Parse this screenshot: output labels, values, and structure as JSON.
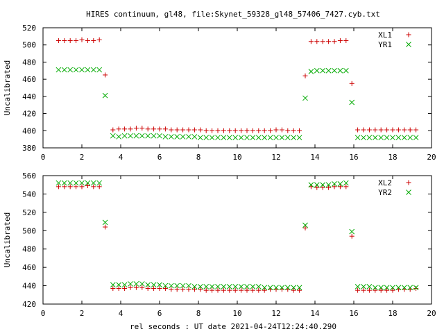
{
  "figure_title": "HIRES continuum, gl48, file:Skynet_59328_gl48_57406_7427.cyb.txt",
  "shared_xlabel": "rel seconds : UT date 2021-04-24T12:24:40.290",
  "colors": {
    "plus_series": "#cc0000",
    "cross_series": "#00aa00",
    "axes": "#000000"
  },
  "chart_data": [
    {
      "type": "scatter",
      "title": "",
      "xlabel": "",
      "ylabel": "Uncalibrated",
      "xlim": [
        0,
        20
      ],
      "ylim": [
        380,
        520
      ],
      "xticks": [
        0,
        2,
        4,
        6,
        8,
        10,
        12,
        14,
        16,
        18,
        20
      ],
      "yticks": [
        380,
        400,
        420,
        440,
        460,
        480,
        500,
        520
      ],
      "grid": false,
      "legend_position": "top-right",
      "series": [
        {
          "name": "XL1",
          "marker": "plus",
          "color": "#cc0000",
          "x": [
            0.8,
            1.1,
            1.4,
            1.7,
            2.0,
            2.3,
            2.6,
            2.9,
            3.2,
            3.6,
            3.9,
            4.2,
            4.5,
            4.8,
            5.1,
            5.4,
            5.7,
            6.0,
            6.3,
            6.6,
            6.9,
            7.2,
            7.5,
            7.8,
            8.1,
            8.4,
            8.7,
            9.0,
            9.3,
            9.6,
            9.9,
            10.2,
            10.5,
            10.8,
            11.1,
            11.4,
            11.7,
            12.0,
            12.3,
            12.6,
            12.9,
            13.2,
            13.5,
            13.8,
            14.1,
            14.4,
            14.7,
            15.0,
            15.3,
            15.6,
            15.9,
            16.2,
            16.5,
            16.8,
            17.1,
            17.4,
            17.7,
            18.0,
            18.3,
            18.6,
            18.9,
            19.2
          ],
          "y": [
            505,
            505,
            505,
            505,
            506,
            505,
            505,
            506,
            465,
            401,
            402,
            402,
            402,
            403,
            403,
            402,
            402,
            402,
            402,
            401,
            401,
            401,
            401,
            401,
            401,
            400,
            400,
            400,
            400,
            400,
            400,
            400,
            400,
            400,
            400,
            400,
            400,
            401,
            401,
            400,
            400,
            400,
            464,
            504,
            504,
            504,
            504,
            504,
            505,
            505,
            455,
            401,
            401,
            401,
            401,
            401,
            401,
            401,
            401,
            401,
            401,
            401
          ]
        },
        {
          "name": "YR1",
          "marker": "cross",
          "color": "#00aa00",
          "x": [
            0.8,
            1.1,
            1.4,
            1.7,
            2.0,
            2.3,
            2.6,
            2.9,
            3.2,
            3.6,
            3.9,
            4.2,
            4.5,
            4.8,
            5.1,
            5.4,
            5.7,
            6.0,
            6.3,
            6.6,
            6.9,
            7.2,
            7.5,
            7.8,
            8.1,
            8.4,
            8.7,
            9.0,
            9.3,
            9.6,
            9.9,
            10.2,
            10.5,
            10.8,
            11.1,
            11.4,
            11.7,
            12.0,
            12.3,
            12.6,
            12.9,
            13.2,
            13.5,
            13.8,
            14.1,
            14.4,
            14.7,
            15.0,
            15.3,
            15.6,
            15.9,
            16.2,
            16.5,
            16.8,
            17.1,
            17.4,
            17.7,
            18.0,
            18.3,
            18.6,
            18.9,
            19.2
          ],
          "y": [
            471,
            471,
            471,
            471,
            471,
            471,
            471,
            471,
            441,
            394,
            393,
            394,
            394,
            394,
            394,
            394,
            394,
            394,
            393,
            393,
            393,
            393,
            393,
            393,
            392,
            392,
            392,
            392,
            392,
            392,
            392,
            392,
            392,
            392,
            392,
            392,
            392,
            392,
            392,
            392,
            392,
            392,
            438,
            469,
            470,
            470,
            470,
            470,
            470,
            470,
            433,
            392,
            392,
            392,
            392,
            392,
            392,
            392,
            392,
            392,
            392,
            392
          ]
        }
      ]
    },
    {
      "type": "scatter",
      "title": "",
      "xlabel": "rel seconds : UT date 2021-04-24T12:24:40.290",
      "ylabel": "Uncalibrated",
      "xlim": [
        0,
        20
      ],
      "ylim": [
        420,
        560
      ],
      "xticks": [
        0,
        2,
        4,
        6,
        8,
        10,
        12,
        14,
        16,
        18,
        20
      ],
      "yticks": [
        420,
        440,
        460,
        480,
        500,
        520,
        540,
        560
      ],
      "grid": false,
      "legend_position": "top-right",
      "series": [
        {
          "name": "XL2",
          "marker": "plus",
          "color": "#cc0000",
          "x": [
            0.8,
            1.1,
            1.4,
            1.7,
            2.0,
            2.3,
            2.6,
            2.9,
            3.2,
            3.6,
            3.9,
            4.2,
            4.5,
            4.8,
            5.1,
            5.4,
            5.7,
            6.0,
            6.3,
            6.6,
            6.9,
            7.2,
            7.5,
            7.8,
            8.1,
            8.4,
            8.7,
            9.0,
            9.3,
            9.6,
            9.9,
            10.2,
            10.5,
            10.8,
            11.1,
            11.4,
            11.7,
            12.0,
            12.3,
            12.6,
            12.9,
            13.2,
            13.5,
            13.8,
            14.1,
            14.4,
            14.7,
            15.0,
            15.3,
            15.6,
            15.9,
            16.2,
            16.5,
            16.8,
            17.1,
            17.4,
            17.7,
            18.0,
            18.3,
            18.6,
            18.9,
            19.2
          ],
          "y": [
            548,
            548,
            548,
            548,
            548,
            549,
            548,
            548,
            504,
            437,
            437,
            437,
            438,
            438,
            438,
            437,
            437,
            437,
            437,
            436,
            436,
            436,
            436,
            436,
            436,
            435,
            435,
            435,
            435,
            435,
            435,
            435,
            435,
            435,
            435,
            435,
            436,
            436,
            436,
            436,
            435,
            435,
            503,
            548,
            547,
            547,
            547,
            548,
            548,
            548,
            494,
            435,
            435,
            435,
            435,
            435,
            435,
            435,
            436,
            436,
            436,
            437
          ]
        },
        {
          "name": "YR2",
          "marker": "cross",
          "color": "#00aa00",
          "x": [
            0.8,
            1.1,
            1.4,
            1.7,
            2.0,
            2.3,
            2.6,
            2.9,
            3.2,
            3.6,
            3.9,
            4.2,
            4.5,
            4.8,
            5.1,
            5.4,
            5.7,
            6.0,
            6.3,
            6.6,
            6.9,
            7.2,
            7.5,
            7.8,
            8.1,
            8.4,
            8.7,
            9.0,
            9.3,
            9.6,
            9.9,
            10.2,
            10.5,
            10.8,
            11.1,
            11.4,
            11.7,
            12.0,
            12.3,
            12.6,
            12.9,
            13.2,
            13.5,
            13.8,
            14.1,
            14.4,
            14.7,
            15.0,
            15.3,
            15.6,
            15.9,
            16.2,
            16.5,
            16.8,
            17.1,
            17.4,
            17.7,
            18.0,
            18.3,
            18.6,
            18.9,
            19.2
          ],
          "y": [
            552,
            552,
            552,
            552,
            552,
            552,
            552,
            552,
            509,
            441,
            441,
            441,
            442,
            442,
            442,
            441,
            441,
            441,
            440,
            440,
            440,
            440,
            440,
            439,
            439,
            439,
            439,
            439,
            439,
            439,
            439,
            439,
            439,
            439,
            439,
            438,
            438,
            438,
            438,
            438,
            438,
            438,
            506,
            550,
            550,
            550,
            550,
            551,
            551,
            552,
            499,
            439,
            439,
            439,
            438,
            438,
            438,
            438,
            438,
            438,
            438,
            438
          ]
        }
      ]
    }
  ]
}
